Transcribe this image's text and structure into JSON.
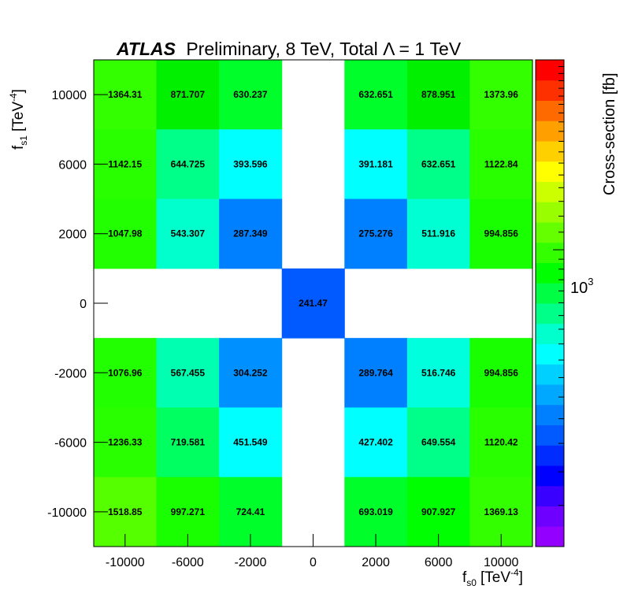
{
  "chart_data": {
    "type": "heatmap",
    "title_bold": "ATLAS",
    "title_rest": "Preliminary, 8 TeV, Total Λ = 1 TeV",
    "xlabel": {
      "main": "f",
      "sub": "s0",
      "unit": "[TeV",
      "exp": "-4",
      "close": "]"
    },
    "ylabel": {
      "main": "f",
      "sub": "s1",
      "unit": "[TeV",
      "exp": "-4",
      "close": "]"
    },
    "zlabel": "Cross-section [fb]",
    "z_tick": {
      "base": "10",
      "exp": "3"
    },
    "z_scale": "log",
    "x_ticks": [
      "-10000",
      "-6000",
      "-2000",
      "0",
      "2000",
      "6000",
      "10000"
    ],
    "y_ticks": [
      "10000",
      "6000",
      "2000",
      "0",
      "-2000",
      "-6000",
      "-10000"
    ],
    "cells": [
      [
        "1364.31",
        "871.707",
        "630.237",
        null,
        "632.651",
        "878.951",
        "1373.96"
      ],
      [
        "1142.15",
        "644.725",
        "393.596",
        null,
        "391.181",
        "632.651",
        "1122.84"
      ],
      [
        "1047.98",
        "543.307",
        "287.349",
        null,
        "275.276",
        "511.916",
        "994.856"
      ],
      [
        null,
        null,
        null,
        "241.47",
        null,
        null,
        null
      ],
      [
        "1076.96",
        "567.455",
        "304.252",
        null,
        "289.764",
        "516.746",
        "994.856"
      ],
      [
        "1236.33",
        "719.581",
        "451.549",
        null,
        "427.402",
        "649.554",
        "1120.42"
      ],
      [
        "1518.85",
        "997.271",
        "724.41",
        null,
        "693.019",
        "907.927",
        "1369.13"
      ]
    ],
    "cell_colors": [
      [
        "#33ff00",
        "#00f000",
        "#00ff2a",
        null,
        "#00ff2a",
        "#00f000",
        "#33ff00"
      ],
      [
        "#2aff00",
        "#00ff88",
        "#00ffff",
        null,
        "#00ffff",
        "#00ff88",
        "#2aff00"
      ],
      [
        "#22ff00",
        "#00ffcc",
        "#0080ff",
        null,
        "#0080ff",
        "#00ffd2",
        "#19ff00"
      ],
      [
        null,
        null,
        null,
        "#005aff",
        null,
        null,
        null
      ],
      [
        "#22ff00",
        "#00ffb0",
        "#0090ff",
        null,
        "#0080ff",
        "#00ffdd",
        "#19ff00"
      ],
      [
        "#2aff00",
        "#00ff60",
        "#00ffff",
        null,
        "#00ffff",
        "#00ff88",
        "#2aff00"
      ],
      [
        "#55ff00",
        "#19ff00",
        "#00ff2a",
        null,
        "#00ff2a",
        "#00ff00",
        "#33ff00"
      ]
    ],
    "palette": [
      "#9300ff",
      "#6e00ff",
      "#3a00ff",
      "#0000ff",
      "#002cff",
      "#005aff",
      "#0080ff",
      "#00a8ff",
      "#00d0ff",
      "#00ffff",
      "#00ffcc",
      "#00ff88",
      "#00ff44",
      "#00ff00",
      "#33ff00",
      "#66ff00",
      "#99ff00",
      "#ccff00",
      "#ffff00",
      "#ffd000",
      "#ffa000",
      "#ff6a00",
      "#ff3000",
      "#ff0000"
    ]
  }
}
